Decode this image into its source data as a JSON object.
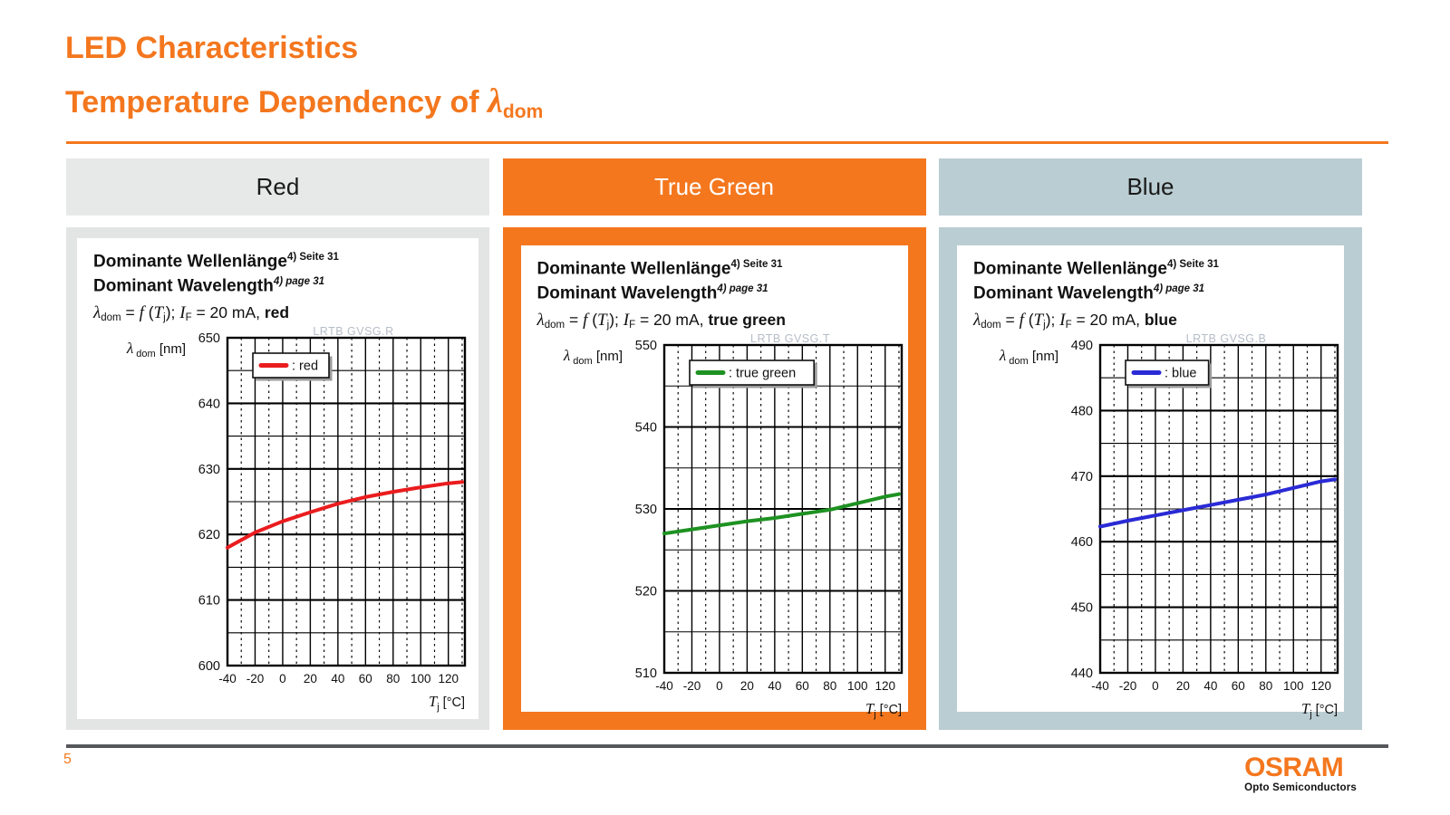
{
  "slide": {
    "title": "LED Characteristics",
    "subtitle_prefix": "Temperature Dependency of ",
    "subtitle_symbol": "λ",
    "subtitle_sub": "dom",
    "page_number": "5",
    "accent": "#F4771E"
  },
  "logo": {
    "brand": "OSRAM",
    "subtitle": "Opto Semiconductors"
  },
  "headers": [
    {
      "label": "Red",
      "bg": "#e7e8e8",
      "fg": "#1a1a1a"
    },
    {
      "label": "True Green",
      "bg": "#F4771E",
      "fg": "#ffffff"
    },
    {
      "label": "Blue",
      "bg": "#bacdd2",
      "fg": "#1a1a1a"
    }
  ],
  "panels": [
    {
      "frame_color": "#e3e4e4",
      "heading_de": "Dominante Wellenlänge",
      "heading_de_sup": "4) Seite 31",
      "heading_en": "Dominant Wavelength",
      "heading_en_sup": "4) page 31",
      "formula": {
        "lambda": "λ",
        "lambda_sub": "dom",
        "eq": " = ",
        "f": "f",
        "open": " (",
        "T": "T",
        "T_sub": "j",
        "close": "); ",
        "I": "I",
        "I_sub": "F",
        "cond": " = 20 mA, ",
        "word": "red"
      }
    },
    {
      "frame_color": "#F4771E",
      "heading_de": "Dominante Wellenlänge",
      "heading_de_sup": "4) Seite 31",
      "heading_en": "Dominant Wavelength",
      "heading_en_sup": "4) page 31",
      "formula": {
        "lambda": "λ",
        "lambda_sub": "dom",
        "eq": " = ",
        "f": "f",
        "open": " (",
        "T": "T",
        "T_sub": "j",
        "close": "); ",
        "I": "I",
        "I_sub": "F",
        "cond": " = 20 mA, ",
        "word": "true green"
      }
    },
    {
      "frame_color": "#bacdd2",
      "heading_de": "Dominante Wellenlänge",
      "heading_de_sup": "4) Seite 31",
      "heading_en": "Dominant Wavelength",
      "heading_en_sup": "4) page 31",
      "formula": {
        "lambda": "λ",
        "lambda_sub": "dom",
        "eq": " = ",
        "f": "f",
        "open": " (",
        "T": "T",
        "T_sub": "j",
        "close": "); ",
        "I": "I",
        "I_sub": "F",
        "cond": " = 20 mA, ",
        "word": "blue"
      }
    }
  ],
  "chart_data": [
    {
      "type": "line",
      "title": "LRTB GVSG.R",
      "legend": ": red",
      "legend_position": "top-left",
      "color": "#ea1c1e",
      "x": [
        -40,
        -20,
        0,
        20,
        40,
        60,
        80,
        100,
        120,
        130
      ],
      "y": [
        618.0,
        620.3,
        622.0,
        623.4,
        624.7,
        625.7,
        626.5,
        627.2,
        627.8,
        628.0
      ],
      "xlim": [
        -40,
        132
      ],
      "ylim": [
        600,
        650
      ],
      "x_major_ticks": [
        -40,
        -20,
        0,
        20,
        40,
        60,
        80,
        100,
        120
      ],
      "y_major_ticks": [
        600,
        610,
        620,
        630,
        640,
        650
      ],
      "x_minor_step": 10,
      "y_minor_step": 5,
      "grid": true,
      "xlabel": {
        "symbol": "T",
        "sub": "j",
        "unit": " [°C]"
      },
      "ylabel": {
        "symbol": "λ",
        "sub": "dom",
        "unit": " [nm]"
      }
    },
    {
      "type": "line",
      "title": "LRTB GVSG.T",
      "legend": ": true green",
      "legend_position": "top-left",
      "color": "#1e9222",
      "x": [
        -40,
        -20,
        0,
        20,
        40,
        60,
        80,
        100,
        120,
        130
      ],
      "y": [
        527.0,
        527.5,
        528.0,
        528.5,
        528.9,
        529.4,
        529.9,
        530.7,
        531.5,
        531.8
      ],
      "xlim": [
        -40,
        132
      ],
      "ylim": [
        510,
        550
      ],
      "x_major_ticks": [
        -40,
        -20,
        0,
        20,
        40,
        60,
        80,
        100,
        120
      ],
      "y_major_ticks": [
        510,
        520,
        530,
        540,
        550
      ],
      "x_minor_step": 10,
      "y_minor_step": 5,
      "grid": true,
      "xlabel": {
        "symbol": "T",
        "sub": "j",
        "unit": " [°C]"
      },
      "ylabel": {
        "symbol": "λ",
        "sub": "dom",
        "unit": " [nm]"
      }
    },
    {
      "type": "line",
      "title": "LRTB GVSG.B",
      "legend": ": blue",
      "legend_position": "top-left",
      "color": "#2a2ad6",
      "x": [
        -40,
        -20,
        0,
        20,
        40,
        60,
        80,
        100,
        120,
        130
      ],
      "y": [
        462.3,
        463.2,
        464.0,
        464.8,
        465.6,
        466.4,
        467.2,
        468.2,
        469.2,
        469.5
      ],
      "xlim": [
        -40,
        132
      ],
      "ylim": [
        440,
        490
      ],
      "x_major_ticks": [
        -40,
        -20,
        0,
        20,
        40,
        60,
        80,
        100,
        120
      ],
      "y_major_ticks": [
        440,
        450,
        460,
        470,
        480,
        490
      ],
      "x_minor_step": 10,
      "y_minor_step": 5,
      "grid": true,
      "xlabel": {
        "symbol": "T",
        "sub": "j",
        "unit": " [°C]"
      },
      "ylabel": {
        "symbol": "λ",
        "sub": "dom",
        "unit": " [nm]"
      }
    }
  ]
}
